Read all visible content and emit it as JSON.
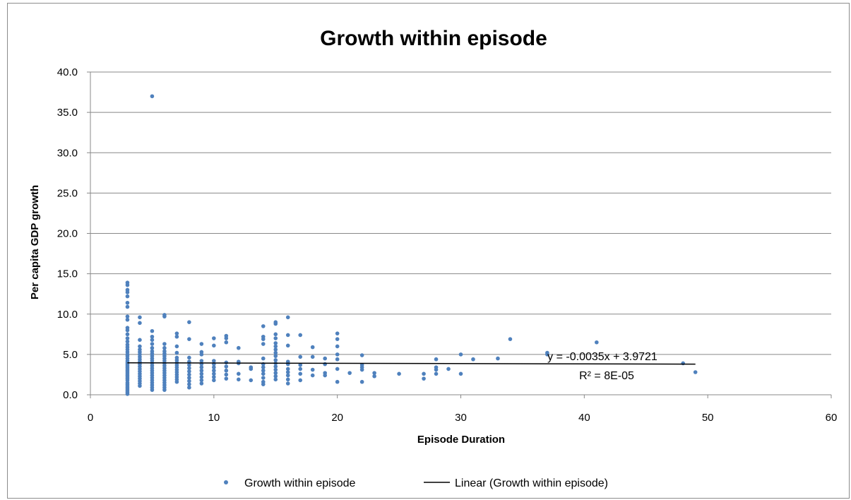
{
  "chart_data": {
    "type": "scatter",
    "title": "Growth within episode",
    "xlabel": "Episode Duration",
    "ylabel": "Per capita GDP growth",
    "xlim": [
      0,
      60
    ],
    "ylim": [
      0,
      40
    ],
    "x_ticks": [
      "0",
      "10",
      "20",
      "30",
      "40",
      "50",
      "60"
    ],
    "y_ticks": [
      "0.0",
      "5.0",
      "10.0",
      "15.0",
      "20.0",
      "25.0",
      "30.0",
      "35.0",
      "40.0"
    ],
    "grid": "horizontal",
    "legend_position": "bottom",
    "series": [
      {
        "name": "Growth within episode",
        "color": "#4f81bd",
        "points": [
          [
            3,
            0.1
          ],
          [
            3,
            0.3
          ],
          [
            3,
            0.5
          ],
          [
            3,
            0.7
          ],
          [
            3,
            0.9
          ],
          [
            3,
            1.1
          ],
          [
            3,
            1.3
          ],
          [
            3,
            1.5
          ],
          [
            3,
            1.8
          ],
          [
            3,
            2.0
          ],
          [
            3,
            2.2
          ],
          [
            3,
            2.4
          ],
          [
            3,
            2.6
          ],
          [
            3,
            2.8
          ],
          [
            3,
            3.0
          ],
          [
            3,
            3.2
          ],
          [
            3,
            3.4
          ],
          [
            3,
            3.6
          ],
          [
            3,
            3.8
          ],
          [
            3,
            4.0
          ],
          [
            3,
            4.2
          ],
          [
            3,
            4.5
          ],
          [
            3,
            4.8
          ],
          [
            3,
            5.0
          ],
          [
            3,
            5.3
          ],
          [
            3,
            5.6
          ],
          [
            3,
            5.9
          ],
          [
            3,
            6.2
          ],
          [
            3,
            6.6
          ],
          [
            3,
            7.0
          ],
          [
            3,
            7.5
          ],
          [
            3,
            8.0
          ],
          [
            3,
            8.3
          ],
          [
            3,
            9.3
          ],
          [
            3,
            9.7
          ],
          [
            3,
            10.9
          ],
          [
            3,
            11.4
          ],
          [
            3,
            12.2
          ],
          [
            3,
            12.7
          ],
          [
            3,
            13.0
          ],
          [
            3,
            13.6
          ],
          [
            3,
            13.9
          ],
          [
            4,
            1.1
          ],
          [
            4,
            1.4
          ],
          [
            4,
            1.7
          ],
          [
            4,
            2.0
          ],
          [
            4,
            2.3
          ],
          [
            4,
            2.6
          ],
          [
            4,
            2.9
          ],
          [
            4,
            3.2
          ],
          [
            4,
            3.5
          ],
          [
            4,
            3.8
          ],
          [
            4,
            4.1
          ],
          [
            4,
            4.4
          ],
          [
            4,
            4.7
          ],
          [
            4,
            5.0
          ],
          [
            4,
            5.3
          ],
          [
            4,
            5.6
          ],
          [
            4,
            6.0
          ],
          [
            4,
            6.8
          ],
          [
            4,
            8.9
          ],
          [
            4,
            9.6
          ],
          [
            5,
            0.6
          ],
          [
            5,
            0.9
          ],
          [
            5,
            1.2
          ],
          [
            5,
            1.5
          ],
          [
            5,
            1.8
          ],
          [
            5,
            2.1
          ],
          [
            5,
            2.4
          ],
          [
            5,
            2.7
          ],
          [
            5,
            3.0
          ],
          [
            5,
            3.3
          ],
          [
            5,
            3.6
          ],
          [
            5,
            3.9
          ],
          [
            5,
            4.2
          ],
          [
            5,
            4.5
          ],
          [
            5,
            4.8
          ],
          [
            5,
            5.1
          ],
          [
            5,
            5.4
          ],
          [
            5,
            5.8
          ],
          [
            5,
            6.3
          ],
          [
            5,
            6.8
          ],
          [
            5,
            7.2
          ],
          [
            5,
            7.9
          ],
          [
            5,
            37.0
          ],
          [
            6,
            0.6
          ],
          [
            6,
            0.9
          ],
          [
            6,
            1.2
          ],
          [
            6,
            1.5
          ],
          [
            6,
            1.8
          ],
          [
            6,
            2.1
          ],
          [
            6,
            2.4
          ],
          [
            6,
            2.7
          ],
          [
            6,
            3.0
          ],
          [
            6,
            3.3
          ],
          [
            6,
            3.6
          ],
          [
            6,
            3.9
          ],
          [
            6,
            4.2
          ],
          [
            6,
            4.5
          ],
          [
            6,
            4.8
          ],
          [
            6,
            5.1
          ],
          [
            6,
            5.4
          ],
          [
            6,
            5.8
          ],
          [
            6,
            6.3
          ],
          [
            6,
            9.7
          ],
          [
            6,
            9.9
          ],
          [
            7,
            1.6
          ],
          [
            7,
            1.9
          ],
          [
            7,
            2.2
          ],
          [
            7,
            2.5
          ],
          [
            7,
            2.8
          ],
          [
            7,
            3.1
          ],
          [
            7,
            3.4
          ],
          [
            7,
            3.7
          ],
          [
            7,
            4.0
          ],
          [
            7,
            4.3
          ],
          [
            7,
            4.6
          ],
          [
            7,
            5.2
          ],
          [
            7,
            6.0
          ],
          [
            7,
            7.2
          ],
          [
            7,
            7.6
          ],
          [
            8,
            0.9
          ],
          [
            8,
            1.3
          ],
          [
            8,
            1.7
          ],
          [
            8,
            2.1
          ],
          [
            8,
            2.5
          ],
          [
            8,
            2.9
          ],
          [
            8,
            3.3
          ],
          [
            8,
            3.7
          ],
          [
            8,
            4.1
          ],
          [
            8,
            4.6
          ],
          [
            8,
            6.9
          ],
          [
            8,
            9.0
          ],
          [
            9,
            1.4
          ],
          [
            9,
            1.8
          ],
          [
            9,
            2.2
          ],
          [
            9,
            2.6
          ],
          [
            9,
            3.0
          ],
          [
            9,
            3.4
          ],
          [
            9,
            3.8
          ],
          [
            9,
            4.2
          ],
          [
            9,
            5.0
          ],
          [
            9,
            5.3
          ],
          [
            9,
            6.3
          ],
          [
            10,
            1.8
          ],
          [
            10,
            2.2
          ],
          [
            10,
            2.6
          ],
          [
            10,
            3.0
          ],
          [
            10,
            3.4
          ],
          [
            10,
            3.8
          ],
          [
            10,
            4.2
          ],
          [
            10,
            6.1
          ],
          [
            10,
            7.0
          ],
          [
            11,
            2.0
          ],
          [
            11,
            2.5
          ],
          [
            11,
            3.0
          ],
          [
            11,
            3.5
          ],
          [
            11,
            4.0
          ],
          [
            11,
            6.5
          ],
          [
            11,
            7.0
          ],
          [
            11,
            7.3
          ],
          [
            12,
            1.9
          ],
          [
            12,
            2.6
          ],
          [
            12,
            3.9
          ],
          [
            12,
            4.1
          ],
          [
            12,
            5.8
          ],
          [
            13,
            1.8
          ],
          [
            13,
            3.2
          ],
          [
            13,
            3.4
          ],
          [
            14,
            1.3
          ],
          [
            14,
            1.6
          ],
          [
            14,
            2.1
          ],
          [
            14,
            2.6
          ],
          [
            14,
            3.0
          ],
          [
            14,
            3.4
          ],
          [
            14,
            3.8
          ],
          [
            14,
            4.5
          ],
          [
            14,
            6.3
          ],
          [
            14,
            6.9
          ],
          [
            14,
            7.2
          ],
          [
            14,
            8.5
          ],
          [
            15,
            1.9
          ],
          [
            15,
            2.3
          ],
          [
            15,
            2.7
          ],
          [
            15,
            3.1
          ],
          [
            15,
            3.5
          ],
          [
            15,
            3.9
          ],
          [
            15,
            4.3
          ],
          [
            15,
            4.8
          ],
          [
            15,
            5.2
          ],
          [
            15,
            5.6
          ],
          [
            15,
            6.0
          ],
          [
            15,
            6.4
          ],
          [
            15,
            7.0
          ],
          [
            15,
            7.5
          ],
          [
            15,
            8.8
          ],
          [
            15,
            9.0
          ],
          [
            16,
            1.4
          ],
          [
            16,
            1.9
          ],
          [
            16,
            2.4
          ],
          [
            16,
            2.8
          ],
          [
            16,
            3.2
          ],
          [
            16,
            3.8
          ],
          [
            16,
            4.1
          ],
          [
            16,
            6.1
          ],
          [
            16,
            7.4
          ],
          [
            16,
            9.6
          ],
          [
            17,
            1.8
          ],
          [
            17,
            2.6
          ],
          [
            17,
            3.2
          ],
          [
            17,
            3.7
          ],
          [
            17,
            4.7
          ],
          [
            17,
            7.4
          ],
          [
            18,
            2.4
          ],
          [
            18,
            3.1
          ],
          [
            18,
            4.7
          ],
          [
            18,
            5.9
          ],
          [
            19,
            2.4
          ],
          [
            19,
            2.7
          ],
          [
            19,
            3.8
          ],
          [
            19,
            4.5
          ],
          [
            20,
            1.6
          ],
          [
            20,
            3.2
          ],
          [
            20,
            4.4
          ],
          [
            20,
            5.0
          ],
          [
            20,
            6.0
          ],
          [
            20,
            6.9
          ],
          [
            20,
            7.6
          ],
          [
            21,
            2.7
          ],
          [
            22,
            1.6
          ],
          [
            22,
            3.1
          ],
          [
            22,
            3.4
          ],
          [
            22,
            3.7
          ],
          [
            22,
            4.9
          ],
          [
            23,
            2.3
          ],
          [
            23,
            2.7
          ],
          [
            25,
            2.6
          ],
          [
            27,
            2.0
          ],
          [
            27,
            2.6
          ],
          [
            28,
            2.6
          ],
          [
            28,
            3.1
          ],
          [
            28,
            3.4
          ],
          [
            28,
            4.4
          ],
          [
            29,
            3.2
          ],
          [
            30,
            2.6
          ],
          [
            30,
            5.0
          ],
          [
            31,
            4.4
          ],
          [
            33,
            4.5
          ],
          [
            34,
            6.9
          ],
          [
            37,
            5.0
          ],
          [
            37,
            5.2
          ],
          [
            41,
            6.5
          ],
          [
            48,
            3.9
          ],
          [
            49,
            2.8
          ]
        ]
      }
    ],
    "trendline": {
      "name": "Linear (Growth within episode)",
      "color": "#000000",
      "slope": -0.0035,
      "intercept": 3.9721,
      "x_range": [
        3,
        49
      ],
      "equation_label": "y = -0.0035x + 3.9721",
      "r2_label": "R² = 8E-05"
    }
  }
}
